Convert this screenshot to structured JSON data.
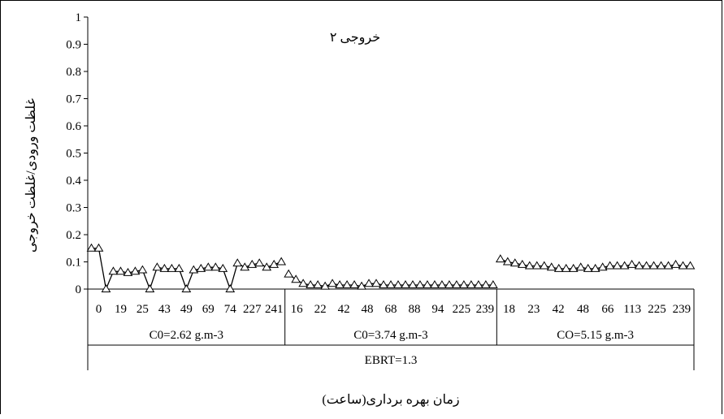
{
  "chart_data": {
    "type": "line",
    "title": "خروجی ۲",
    "ylabel": "غلظت ورودی/غلظت خروجی",
    "xlabel": "زمان بهره برداری(ساعت)",
    "ylim": [
      0,
      1
    ],
    "yticks": [
      "0",
      "0.1",
      "0.2",
      "0.3",
      "0.4",
      "0.5",
      "0.6",
      "0.7",
      "0.8",
      "0.9",
      "1"
    ],
    "marker": "triangle-open",
    "line_color": "#000000",
    "groups": [
      {
        "label": "C0=2.62 g.m-3",
        "tick_labels": [
          "0",
          "19",
          "25",
          "43",
          "49",
          "69",
          "74",
          "227",
          "241"
        ],
        "values": [
          0.15,
          0.15,
          0.0,
          0.065,
          0.065,
          0.06,
          0.065,
          0.07,
          0.0,
          0.08,
          0.075,
          0.075,
          0.075,
          0.0,
          0.07,
          0.075,
          0.08,
          0.08,
          0.075,
          0.0,
          0.095,
          0.08,
          0.09,
          0.095,
          0.08,
          0.09,
          0.1
        ]
      },
      {
        "label": "C0=3.74 g.m-3",
        "tick_labels": [
          "16",
          "22",
          "42",
          "48",
          "68",
          "88",
          "94",
          "225",
          "239"
        ],
        "values": [
          0.055,
          0.035,
          0.02,
          0.015,
          0.015,
          0.01,
          0.02,
          0.015,
          0.015,
          0.015,
          0.01,
          0.02,
          0.02,
          0.015,
          0.015,
          0.015,
          0.015,
          0.015,
          0.015,
          0.015,
          0.015,
          0.015,
          0.015,
          0.015,
          0.015,
          0.015,
          0.015,
          0.015,
          0.015
        ]
      },
      {
        "label": "CO=5.15 g.m-3",
        "tick_labels": [
          "18",
          "23",
          "42",
          "48",
          "66",
          "113",
          "225",
          "239"
        ],
        "values": [
          0.11,
          0.1,
          0.095,
          0.09,
          0.085,
          0.085,
          0.085,
          0.08,
          0.075,
          0.075,
          0.075,
          0.08,
          0.075,
          0.075,
          0.08,
          0.085,
          0.085,
          0.085,
          0.09,
          0.085,
          0.085,
          0.085,
          0.085,
          0.085,
          0.09,
          0.085,
          0.085
        ]
      }
    ],
    "outer_label": "EBRT=1.3"
  }
}
